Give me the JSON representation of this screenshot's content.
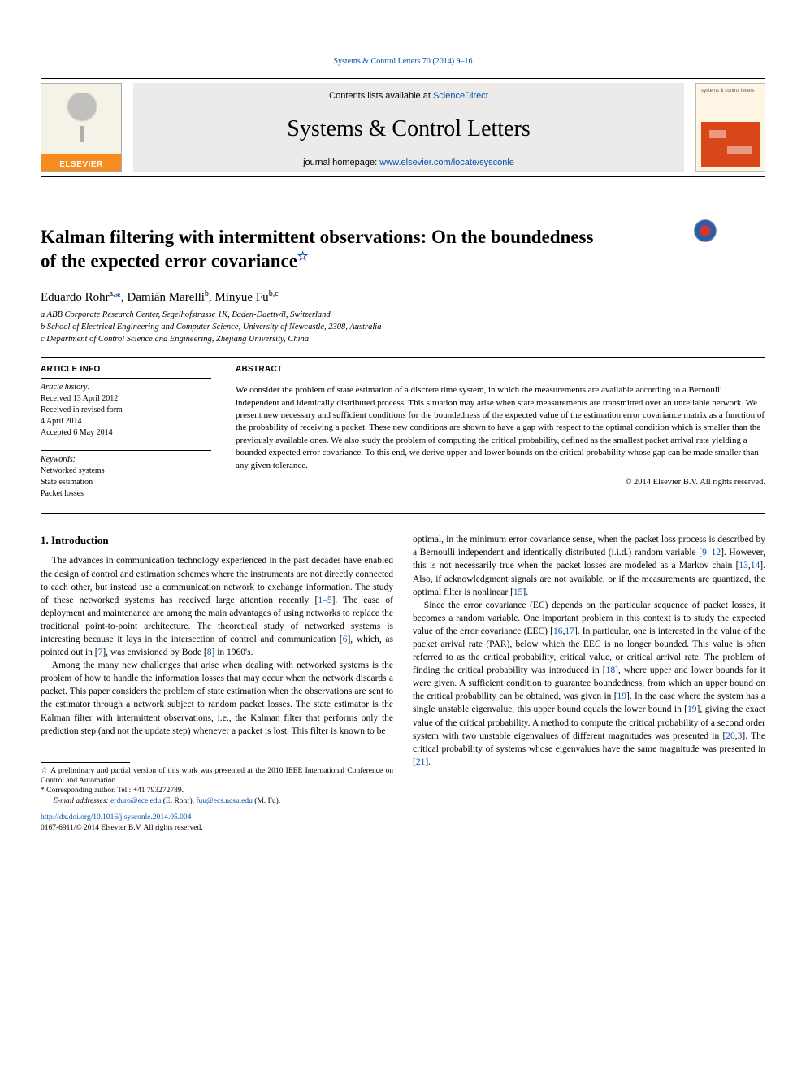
{
  "running_header": "Systems & Control Letters 70 (2014) 9–16",
  "masthead": {
    "contents_prefix": "Contents lists available at ",
    "sciencedirect": "ScienceDirect",
    "journal_title": "Systems & Control Letters",
    "homepage_prefix": "journal homepage: ",
    "homepage_url": "www.elsevier.com/locate/sysconle",
    "cover_label": "systems & control letters"
  },
  "article": {
    "title_line1": "Kalman filtering with intermittent observations: On the boundedness",
    "title_line2": "of the expected error covariance",
    "authors_html": "Eduardo Rohr<sup>a,</sup><span class=\"corr\">*</span>, Damián Marelli<sup>b</sup>, Minyue Fu<sup>b,c</sup>",
    "affiliations": [
      "a ABB Corporate Research Center, Segelhofstrasse 1K, Baden-Daettwil, Switzerland",
      "b School of Electrical Engineering and Computer Science, University of Newcastle, 2308, Australia",
      "c Department of Control Science and Engineering, Zhejiang University, China"
    ]
  },
  "meta": {
    "history_heading": "ARTICLE INFO",
    "history": [
      "Article history:",
      "Received 13 April 2012",
      "Received in revised form",
      "4 April 2014",
      "Accepted 6 May 2014"
    ],
    "keywords_heading": "Keywords:",
    "keywords": [
      "Networked systems",
      "State estimation",
      "Packet losses"
    ]
  },
  "abstract": {
    "heading": "ABSTRACT",
    "text": "We consider the problem of state estimation of a discrete time system, in which the measurements are available according to a Bernoulli independent and identically distributed process. This situation may arise when state measurements are transmitted over an unreliable network. We present new necessary and sufficient conditions for the boundedness of the expected value of the estimation error covariance matrix as a function of the probability of receiving a packet. These new conditions are shown to have a gap with respect to the optimal condition which is smaller than the previously available ones. We also study the problem of computing the critical probability, defined as the smallest packet arrival rate yielding a bounded expected error covariance. To this end, we derive upper and lower bounds on the critical probability whose gap can be made smaller than any given tolerance.",
    "copyright": "© 2014 Elsevier B.V. All rights reserved."
  },
  "section1_heading": "1. Introduction",
  "col1": {
    "p1a": "The advances in communication technology experienced in the past decades have enabled the design of control and estimation schemes where the instruments are not directly connected to each other, but instead use a communication network to exchange information. The study of these networked systems has received large attention recently [",
    "c1": "1–5",
    "p1b": "]. The ease of deployment and maintenance are among the main advantages of using networks to replace the traditional point-to-point architecture. The theoretical study of networked systems is interesting because it lays in the intersection of control and communication [",
    "c2": "6",
    "p1c": "], which, as pointed out in [",
    "c3": "7",
    "p1d": "], was envisioned by Bode [",
    "c4": "8",
    "p1e": "] in 1960's.",
    "p2": "Among the many new challenges that arise when dealing with networked systems is the problem of how to handle the information losses that may occur when the network discards a packet. This paper considers the problem of state estimation when the observations are sent to the estimator through a network subject to random packet losses. The state estimator is the Kalman filter with intermittent observations, i.e., the Kalman filter that performs only the prediction step (and not the update step) whenever a packet is lost. This filter is known to be"
  },
  "footnotes": {
    "f1_pre": "☆ A preliminary and partial version of this work was presented at the 2010 IEEE International Conference on Control and Automation.",
    "f2_pre": "*  Corresponding author. Tel.: +41 793272789.",
    "emails_label": "E-mail addresses: ",
    "email1": "erduro@ece.edu",
    "email1_who": " (E. Rohr), ",
    "email2": "fuu@ecs.ncsu.edu",
    "email2_who": " (M. Fu)."
  },
  "doi": {
    "url": "http://dx.doi.org/10.1016/j.sysconle.2014.05.004",
    "line2": "0167-6911/© 2014 Elsevier B.V. All rights reserved."
  },
  "col2": {
    "p1a": "optimal, in the minimum error covariance sense, when the packet loss process is described by a Bernoulli independent and identically distributed (i.i.d.) random variable [",
    "c1": "9–12",
    "p1b": "]. However, this is not necessarily true when the packet losses are modeled as a Markov chain [",
    "c2": "13",
    "c3": "14",
    "p1c": "]. Also, if acknowledgment signals are not available, or if the measurements are quantized, the optimal filter is nonlinear [",
    "c4": "15",
    "p1d": "].",
    "p2a": "Since the error covariance (EC) depends on the particular sequence of packet losses, it becomes a random variable. One important problem in this context is to study the expected value of the error covariance (EEC) [",
    "c5": "16",
    "c6": "17",
    "p2b": "]. In particular, one is interested in the value of the packet arrival rate (PAR), below which the EEC is no longer bounded. This value is often referred to as the critical probability, critical value, or critical arrival rate. The problem of finding the critical probability was introduced in [",
    "c7": "18",
    "p2c": "], where upper and lower bounds for it were given. A sufficient condition to guarantee boundedness, from which an upper bound on the critical probability can be obtained, was given in [",
    "c8": "19",
    "p2d": "]. In the case where the system has a single unstable eigenvalue, this upper bound equals the lower bound in [",
    "c9": "19",
    "p2e": "], giving the exact value of the critical probability. A method to compute the critical probability of a second order system with two unstable eigenvalues of different magnitudes was presented in [",
    "c10": "20",
    "c11": "3",
    "p2f": "]. The critical probability of systems whose eigenvalues have the same magnitude was presented in [",
    "c12": "21",
    "p2g": "]."
  },
  "colors": {
    "link": "#0050b0",
    "elsevier_orange": "#f68b1f",
    "masthead_bg": "#ecebe9"
  }
}
